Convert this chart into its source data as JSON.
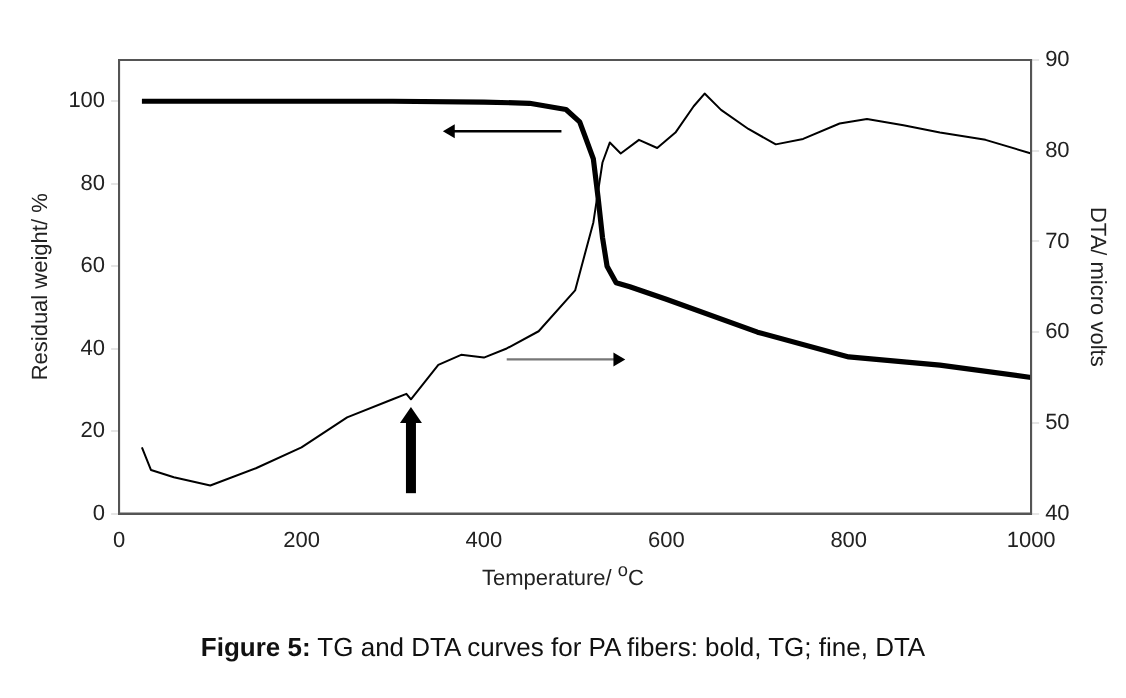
{
  "chart_data": {
    "type": "line",
    "xlabel": "Temperature/ $^{o}$C",
    "ylabel": "Residual weight/ %",
    "y2label": "DTA/ micro volts",
    "xlim": [
      0,
      1000
    ],
    "xticks": [
      0,
      200,
      400,
      600,
      800,
      1000
    ],
    "ylim": [
      0,
      110
    ],
    "yticks": [
      0,
      20,
      40,
      60,
      80,
      100
    ],
    "y2lim": [
      40,
      90
    ],
    "y2ticks": [
      40,
      50,
      60,
      70,
      80,
      90
    ],
    "grid": false,
    "legend": false,
    "marker": "none",
    "line_style": "solid",
    "series": [
      {
        "color": "#000000",
        "x": [
          25,
          100,
          200,
          300,
          400,
          450,
          490,
          505,
          510,
          520,
          525,
          530,
          535,
          545,
          560,
          600,
          700,
          800,
          900,
          1000
        ],
        "values": [
          100,
          100,
          100,
          100,
          99.8,
          99.5,
          98,
          95,
          92,
          86,
          77,
          67,
          60,
          56,
          55,
          52,
          44,
          38,
          36,
          33
        ]
      },
      {
        "color": "#000000",
        "axis": "y2",
        "x": [
          25,
          35,
          60,
          100,
          150,
          200,
          250,
          300,
          315,
          320,
          350,
          375,
          400,
          425,
          460,
          500,
          520,
          530,
          538,
          550,
          570,
          590,
          610,
          630,
          642,
          660,
          690,
          720,
          750,
          790,
          820,
          860,
          900,
          950,
          1000
        ],
        "values": [
          47.3,
          44.8,
          44.0,
          43.1,
          45.0,
          47.3,
          50.6,
          52.6,
          53.2,
          52.6,
          56.4,
          57.5,
          57.2,
          58.2,
          60.1,
          64.6,
          72.1,
          78.7,
          80.9,
          79.7,
          81.2,
          80.3,
          82.0,
          84.9,
          86.3,
          84.5,
          82.4,
          80.7,
          81.3,
          83.0,
          83.5,
          82.8,
          82.0,
          81.2,
          79.7
        ]
      }
    ],
    "annotations": [
      "Figure 5: TG and DTA curves for PA fibers: bold, TG; fine, DTA"
    ]
  }
}
